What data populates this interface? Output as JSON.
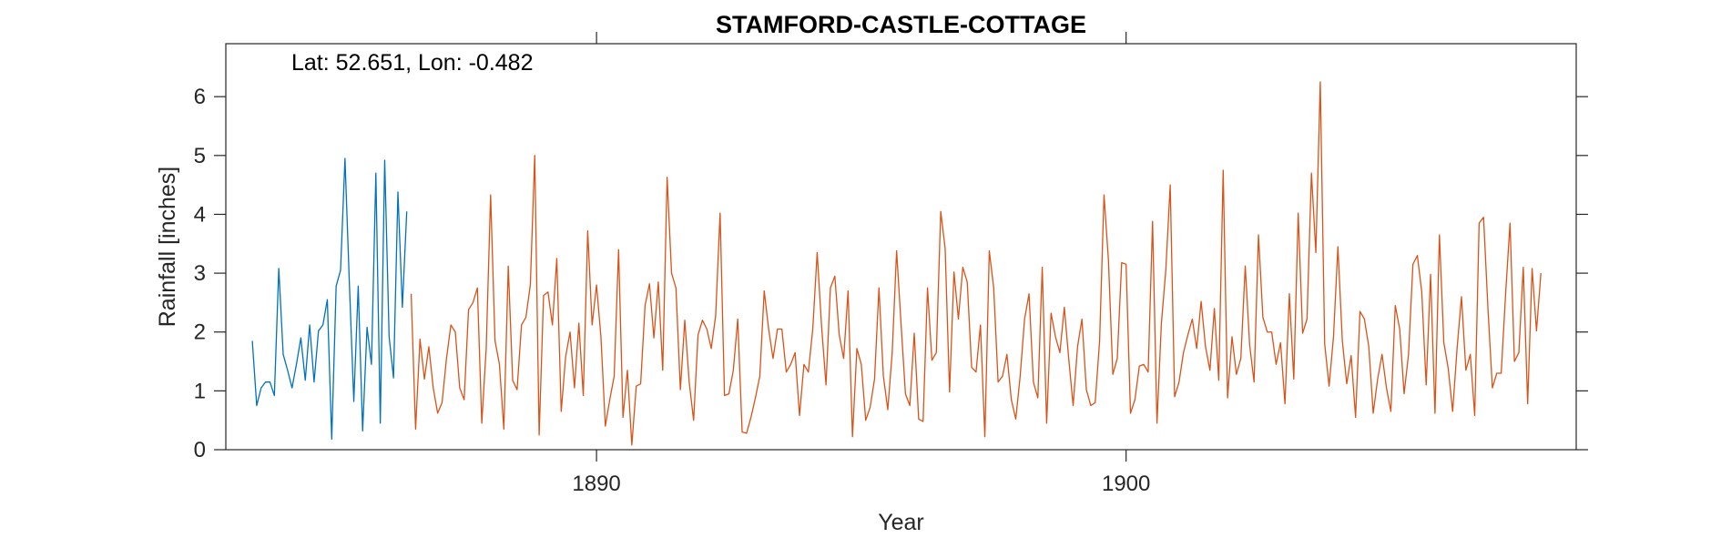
{
  "chart_data": {
    "type": "line",
    "title": "STAMFORD-CASTLE-COTTAGE",
    "annotation": "Lat: 52.651, Lon: -0.482",
    "xlabel": "Year",
    "ylabel": "Rainfall [inches]",
    "xlim": [
      1883.0,
      1908.5
    ],
    "ylim": [
      0,
      6.9
    ],
    "xticks": [
      1890,
      1900
    ],
    "yticks": [
      0,
      1,
      2,
      3,
      4,
      5,
      6
    ],
    "grid": false,
    "colors": {
      "series1": "#0072BD",
      "series2": "#D95319",
      "axis": "#262626"
    },
    "series": [
      {
        "start_year": 1883.5,
        "step": 0.0833333,
        "values": [
          1.85,
          0.75,
          1.05,
          1.15,
          1.15,
          0.92,
          3.08,
          1.62,
          1.35,
          1.05,
          1.45,
          1.9,
          1.18,
          2.12,
          1.15,
          2.02,
          2.12,
          2.55,
          0.18,
          2.78,
          3.05,
          4.95,
          2.82,
          0.82,
          2.78,
          0.32,
          2.08,
          1.45,
          4.7,
          0.45,
          4.92,
          1.92,
          1.22,
          4.38,
          2.42,
          4.05
        ]
      },
      {
        "start_year": 1886.5,
        "step": 0.0833333,
        "values": [
          2.65,
          0.35,
          1.88,
          1.2,
          1.75,
          1.05,
          0.62,
          0.8,
          1.55,
          2.12,
          2.0,
          1.05,
          0.85,
          2.38,
          2.5,
          2.75,
          0.45,
          1.72,
          4.33,
          1.85,
          1.45,
          0.35,
          3.12,
          1.18,
          1.02,
          2.12,
          2.25,
          2.8,
          5.0,
          0.25,
          2.62,
          2.68,
          2.12,
          3.25,
          0.65,
          1.58,
          2.0,
          1.05,
          2.15,
          0.92,
          3.72,
          2.12,
          2.8,
          1.92,
          0.4,
          0.85,
          1.25,
          3.4,
          0.55,
          1.35,
          0.08,
          1.08,
          1.12,
          2.45,
          2.82,
          1.9,
          2.85,
          1.35,
          4.63,
          3.0,
          2.75,
          1.02,
          2.2,
          1.15,
          0.5,
          1.95,
          2.2,
          2.05,
          1.72,
          2.28,
          4.02,
          0.92,
          0.95,
          1.35,
          2.22,
          0.3,
          0.28,
          0.55,
          0.88,
          1.25,
          2.7,
          2.05,
          1.55,
          2.05,
          2.05,
          1.32,
          1.45,
          1.65,
          0.58,
          1.45,
          1.32,
          2.05,
          3.35,
          2.1,
          1.1,
          2.75,
          2.95,
          1.95,
          1.55,
          2.7,
          0.22,
          1.72,
          1.45,
          0.5,
          0.72,
          1.2,
          2.75,
          1.25,
          0.68,
          1.65,
          3.38,
          2.15,
          0.95,
          0.75,
          1.98,
          0.52,
          0.48,
          2.75,
          1.52,
          1.65,
          4.05,
          3.42,
          0.98,
          3.02,
          2.22,
          3.1,
          2.85,
          1.4,
          1.32,
          2.12,
          0.22,
          3.38,
          2.75,
          1.15,
          1.25,
          1.62,
          0.85,
          0.52,
          1.25,
          2.22,
          2.65,
          1.15,
          0.88,
          3.1,
          0.45,
          2.32,
          1.92,
          1.65,
          2.42,
          1.55,
          0.75,
          1.75,
          2.22,
          1.02,
          0.75,
          0.8,
          1.85,
          4.33,
          3.22,
          1.28,
          1.55,
          3.18,
          3.15,
          0.62,
          0.85,
          1.42,
          1.45,
          1.32,
          3.88,
          0.45,
          2.15,
          3.05,
          4.5,
          0.9,
          1.15,
          1.65,
          1.95,
          2.22,
          1.72,
          2.52,
          1.75,
          1.35,
          2.4,
          1.18,
          4.75,
          0.88,
          1.92,
          1.28,
          1.55,
          3.12,
          1.78,
          1.15,
          3.65,
          2.25,
          2.0,
          2.0,
          1.45,
          1.82,
          0.78,
          2.65,
          1.2,
          4.02,
          1.98,
          2.22,
          4.7,
          3.35,
          6.25,
          1.8,
          1.08,
          1.92,
          3.45,
          1.85,
          1.12,
          1.6,
          0.55,
          2.35,
          2.22,
          1.75,
          0.62,
          1.2,
          1.62,
          1.05,
          0.65,
          2.45,
          2.05,
          0.95,
          1.62,
          3.15,
          3.3,
          2.68,
          1.1,
          2.98,
          0.62,
          3.65,
          1.82,
          1.38,
          0.65,
          1.72,
          2.6,
          1.35,
          1.62,
          0.58,
          3.85,
          3.95,
          2.4,
          1.05,
          1.3,
          1.3,
          2.65,
          3.85,
          1.5,
          1.65,
          3.1,
          0.78,
          3.08,
          2.02,
          3.0
        ]
      }
    ]
  }
}
